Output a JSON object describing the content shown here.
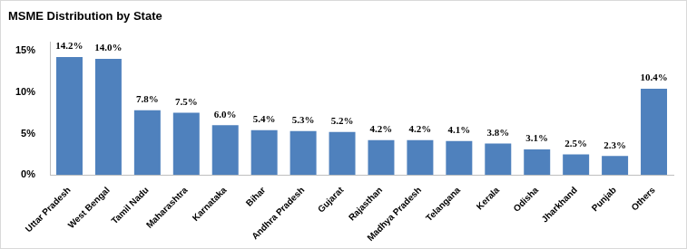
{
  "chart_data": {
    "type": "bar",
    "title": "MSME Distribution by State",
    "categories": [
      "Uttar Pradesh",
      "West Bengal",
      "Tamil Nadu",
      "Maharashtra",
      "Karnataka",
      "Bihar",
      "Andhra Pradesh",
      "Gujarat",
      "Rajasthan",
      "Madhya Pradesh",
      "Telangana",
      "Kerala",
      "Odisha",
      "Jharkhand",
      "Punjab",
      "Others"
    ],
    "values": [
      14.2,
      14.0,
      7.8,
      7.5,
      6.0,
      5.4,
      5.3,
      5.2,
      4.2,
      4.2,
      4.1,
      3.8,
      3.1,
      2.5,
      2.3,
      10.4
    ],
    "value_labels": [
      "14.2%",
      "14.0%",
      "7.8%",
      "7.5%",
      "6.0%",
      "5.4%",
      "5.3%",
      "5.2%",
      "4.2%",
      "4.2%",
      "4.1%",
      "3.8%",
      "3.1%",
      "2.5%",
      "2.3%",
      "10.4%"
    ],
    "color": "#4f81bd",
    "ylim": [
      0,
      16
    ],
    "yticks": [
      {
        "value": 0,
        "label": "0%"
      },
      {
        "value": 5,
        "label": "5%"
      },
      {
        "value": 10,
        "label": "10%"
      },
      {
        "value": 15,
        "label": "15%"
      }
    ],
    "grid": false,
    "data_labels": true
  }
}
